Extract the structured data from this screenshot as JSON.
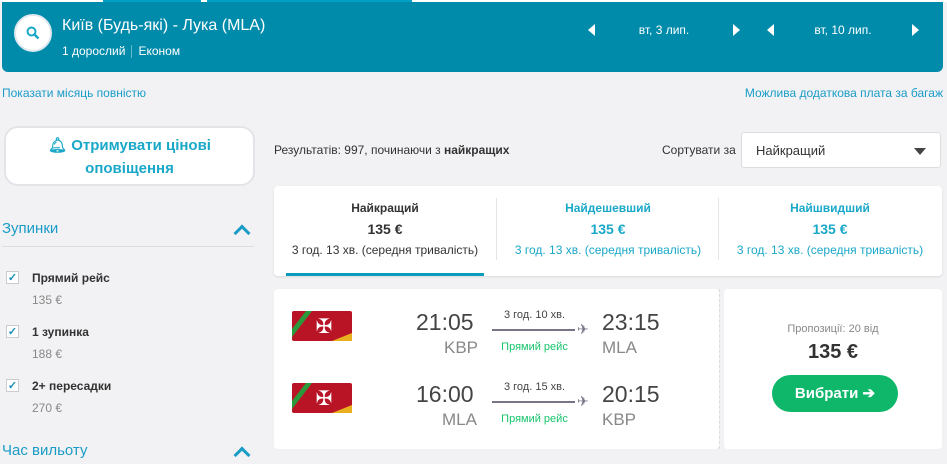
{
  "header": {
    "route": "Київ (Будь-які) - Лука (MLA)",
    "passengers": "1 дорослий",
    "cabin": "Економ",
    "depart_date": "вт, 3 лип.",
    "return_date": "вт, 10 лип."
  },
  "links": {
    "show_month": "Показати місяць повністю",
    "baggage": "Можлива додаткова плата за багаж"
  },
  "alert": {
    "label": "Отримувати цінові оповіщення"
  },
  "filters": {
    "stops_title": "Зупинки",
    "items": [
      {
        "label": "Прямий рейс",
        "price": "135 €",
        "checked": true
      },
      {
        "label": "1 зупинка",
        "price": "188 €",
        "checked": true
      },
      {
        "label": "2+ пересадки",
        "price": "270 €",
        "checked": true
      }
    ],
    "next_title": "Час вильоту"
  },
  "results": {
    "prefix": "Результатів: 997, починаючи з ",
    "bold": "найкращих"
  },
  "sort": {
    "label": "Сортувати за",
    "selected": "Найкращий"
  },
  "tabs": [
    {
      "title": "Найкращий",
      "price": "135 €",
      "duration": "3 год. 13 хв. (середня тривалість)"
    },
    {
      "title": "Найдешевший",
      "price": "135 €",
      "duration": "3 год. 13 хв. (середня тривалість)"
    },
    {
      "title": "Найшвидший",
      "price": "135 €",
      "duration": "3 год. 13 хв. (середня тривалість)"
    }
  ],
  "flight": {
    "legs": [
      {
        "dep_time": "21:05",
        "dep_ap": "KBP",
        "arr_time": "23:15",
        "arr_ap": "MLA",
        "duration": "3 год. 10 хв.",
        "type": "Прямий рейс"
      },
      {
        "dep_time": "16:00",
        "dep_ap": "MLA",
        "arr_time": "20:15",
        "arr_ap": "KBP",
        "duration": "3 год. 15 хв.",
        "type": "Прямий рейс"
      }
    ],
    "offers": "Пропозиції: 20 від",
    "price": "135 €",
    "select": "Вибрати ➔"
  },
  "colors": {
    "header": "#008bab",
    "accent": "#1a9cc7",
    "green": "#0fb76a"
  }
}
